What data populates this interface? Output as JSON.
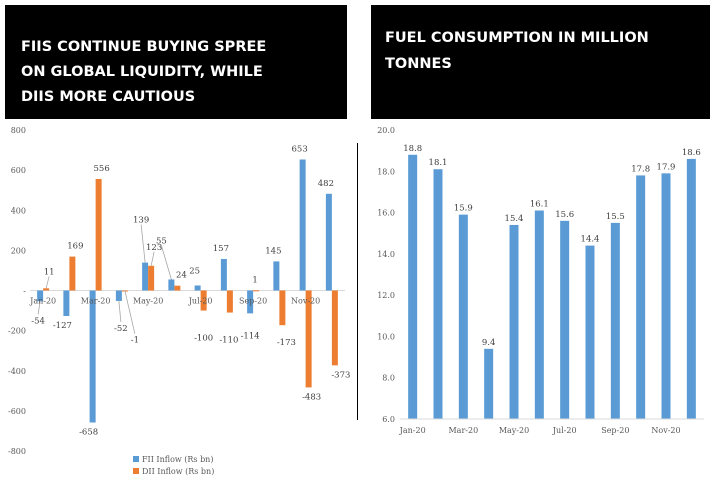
{
  "left_panel": {
    "title_lines": [
      "FIIS CONTINUE BUYING SPREE",
      "ON GLOBAL LIQUIDITY, WHILE",
      "DIIS MORE CAUTIOUS"
    ]
  },
  "right_panel": {
    "title_lines": [
      "FUEL CONSUMPTION IN MILLION",
      "TONNES"
    ]
  },
  "colors": {
    "fii": "#5b9bd5",
    "dii": "#ed7d31",
    "bar": "#5b9bd5"
  },
  "chart_data": [
    {
      "type": "bar",
      "title": "FIIS CONTINUE BUYING SPREE ON GLOBAL LIQUIDITY, WHILE DIIS MORE CAUTIOUS",
      "categories": [
        "Jan-20",
        "Feb-20",
        "Mar-20",
        "Apr-20",
        "May-20",
        "Jun-20",
        "Jul-20",
        "Aug-20",
        "Sep-20",
        "Oct-20",
        "Nov-20",
        "Dec-20"
      ],
      "category_ticks": [
        "Jan-20",
        "Mar-20",
        "May-20",
        "Jul-20",
        "Sep-20",
        "Nov-20"
      ],
      "series": [
        {
          "name": "FII Inflow (Rs bn)",
          "values": [
            -54,
            -127,
            -658,
            -52,
            139,
            55,
            25,
            157,
            -114,
            145,
            653,
            482
          ]
        },
        {
          "name": "DII Inflow (Rs bn)",
          "values": [
            11,
            169,
            556,
            -1,
            123,
            24,
            -100,
            -110,
            1,
            -173,
            -483,
            -373
          ]
        }
      ],
      "y_ticks": [
        "800",
        "600",
        "400",
        "200",
        "-",
        "-200",
        "-400",
        "-600",
        "-800"
      ],
      "ylim": [
        -800,
        800
      ],
      "legend": "bottom"
    },
    {
      "type": "bar",
      "title": "FUEL CONSUMPTION IN MILLION TONNES",
      "categories": [
        "Jan-20",
        "Feb-20",
        "Mar-20",
        "Apr-20",
        "May-20",
        "Jun-20",
        "Jul-20",
        "Aug-20",
        "Sep-20",
        "Oct-20",
        "Nov-20",
        "Dec-20"
      ],
      "category_ticks": [
        "Jan-20",
        "Mar-20",
        "May-20",
        "Jul-20",
        "Sep-20",
        "Nov-20"
      ],
      "values": [
        18.8,
        18.1,
        15.9,
        9.4,
        15.4,
        16.1,
        15.6,
        14.4,
        15.5,
        17.8,
        17.9,
        18.6
      ],
      "value_labels": [
        "18.8",
        "18.1",
        "15.9",
        "9.4",
        "15.4",
        "16.1",
        "15.6",
        "14.4",
        "15.5",
        "17.8",
        "17.9",
        "18.6"
      ],
      "y_ticks": [
        "20.0",
        "18.0",
        "16.0",
        "14.0",
        "12.0",
        "10.0",
        "8.0",
        "6.0"
      ],
      "ylim": [
        6,
        20
      ]
    }
  ]
}
